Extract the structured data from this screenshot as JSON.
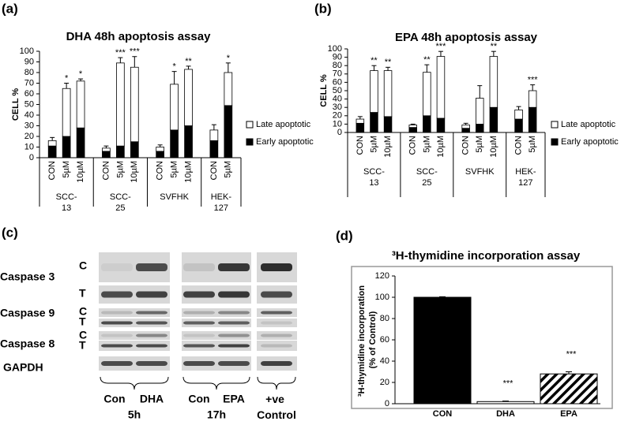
{
  "chart_data": [
    {
      "type": "stacked",
      "panel": "(a)",
      "title": "DHA 48h apoptosis assay",
      "ylabel": "CELL %",
      "ylim": [
        0,
        100
      ],
      "yticks": [
        0,
        10,
        20,
        30,
        40,
        50,
        60,
        70,
        80,
        90,
        100
      ],
      "groups": [
        {
          "name": "SCC-13",
          "categories": [
            "CON",
            "5µM",
            "10µM"
          ]
        },
        {
          "name": "SCC-25",
          "categories": [
            "CON",
            "5µM",
            "10µM"
          ]
        },
        {
          "name": "SVFHK",
          "categories": [
            "CON",
            "5µM",
            "10µM"
          ]
        },
        {
          "name": "HEK-127",
          "categories": [
            "CON",
            "5µM"
          ]
        }
      ],
      "series": [
        {
          "name": "Early apoptotic",
          "color": "#000000",
          "values": [
            11,
            20,
            28,
            6,
            11,
            15,
            6,
            26,
            30,
            16,
            49
          ]
        },
        {
          "name": "Late apoptotic",
          "color": "#ffffff",
          "values": [
            5,
            45,
            44,
            3,
            78,
            70,
            4,
            43,
            53,
            10,
            31
          ],
          "errors": [
            3,
            5,
            2,
            2,
            5,
            10,
            2,
            12,
            3,
            5,
            9
          ]
        }
      ],
      "annotations": [
        null,
        "*",
        "*",
        null,
        "***",
        "***",
        null,
        "*",
        "**",
        null,
        "*"
      ]
    },
    {
      "type": "stacked",
      "panel": "(b)",
      "title": "EPA 48h apoptosis assay",
      "ylabel": "CELL %",
      "ylim": [
        0,
        100
      ],
      "yticks": [
        0,
        10,
        20,
        30,
        40,
        50,
        60,
        70,
        80,
        90,
        100
      ],
      "groups": [
        {
          "name": "SCC-13",
          "categories": [
            "CON",
            "5µM",
            "10µM"
          ]
        },
        {
          "name": "SCC-25",
          "categories": [
            "CON",
            "5µM",
            "10µM"
          ]
        },
        {
          "name": "SVFHK",
          "categories": [
            "CON",
            "5µM",
            "10µM"
          ]
        },
        {
          "name": "HEK-127",
          "categories": [
            "CON",
            "5µM"
          ]
        }
      ],
      "series": [
        {
          "name": "Early apoptotic",
          "color": "#000000",
          "values": [
            11,
            24,
            19,
            6,
            20,
            17,
            5,
            10,
            30,
            16,
            30
          ]
        },
        {
          "name": "Late apoptotic",
          "color": "#ffffff",
          "values": [
            5,
            50,
            55,
            3,
            52,
            74,
            4,
            31,
            61,
            11,
            20
          ],
          "errors": [
            3,
            6,
            4,
            1,
            9,
            6,
            2,
            15,
            6,
            4,
            7
          ]
        }
      ],
      "annotations": [
        null,
        "**",
        "**",
        null,
        "**",
        "***",
        null,
        null,
        "**",
        null,
        "***"
      ]
    },
    {
      "type": "bar",
      "panel": "(d)",
      "title": "³H-thymidine incorporation assay",
      "ylabel": "³H-thymidine incorporation (% of Control)",
      "categories": [
        "CON",
        "DHA",
        "EPA"
      ],
      "values": [
        100,
        2,
        28
      ],
      "errors": [
        0.5,
        0.5,
        2
      ],
      "fills": [
        "#000000",
        "#ffffff",
        "hatch"
      ],
      "ylim": [
        0,
        120
      ],
      "yticks": [
        0,
        20,
        40,
        60,
        80,
        100,
        120
      ],
      "annotations": [
        null,
        "***",
        "***"
      ]
    }
  ],
  "blot": {
    "panel": "(c)",
    "rows": [
      {
        "label": "Caspase 3",
        "bands": [
          "C",
          "T"
        ]
      },
      {
        "label": "Caspase 9",
        "bands": [
          "C",
          "T"
        ]
      },
      {
        "label": "Caspase 8",
        "bands": [
          "C",
          "T"
        ]
      },
      {
        "label": "GAPDH"
      }
    ],
    "lanes": [
      {
        "labels": [
          "Con",
          "DHA"
        ],
        "time": "5h"
      },
      {
        "labels": [
          "Con",
          "EPA"
        ],
        "time": "17h"
      },
      {
        "labels": [
          "+ve Control"
        ]
      }
    ]
  }
}
